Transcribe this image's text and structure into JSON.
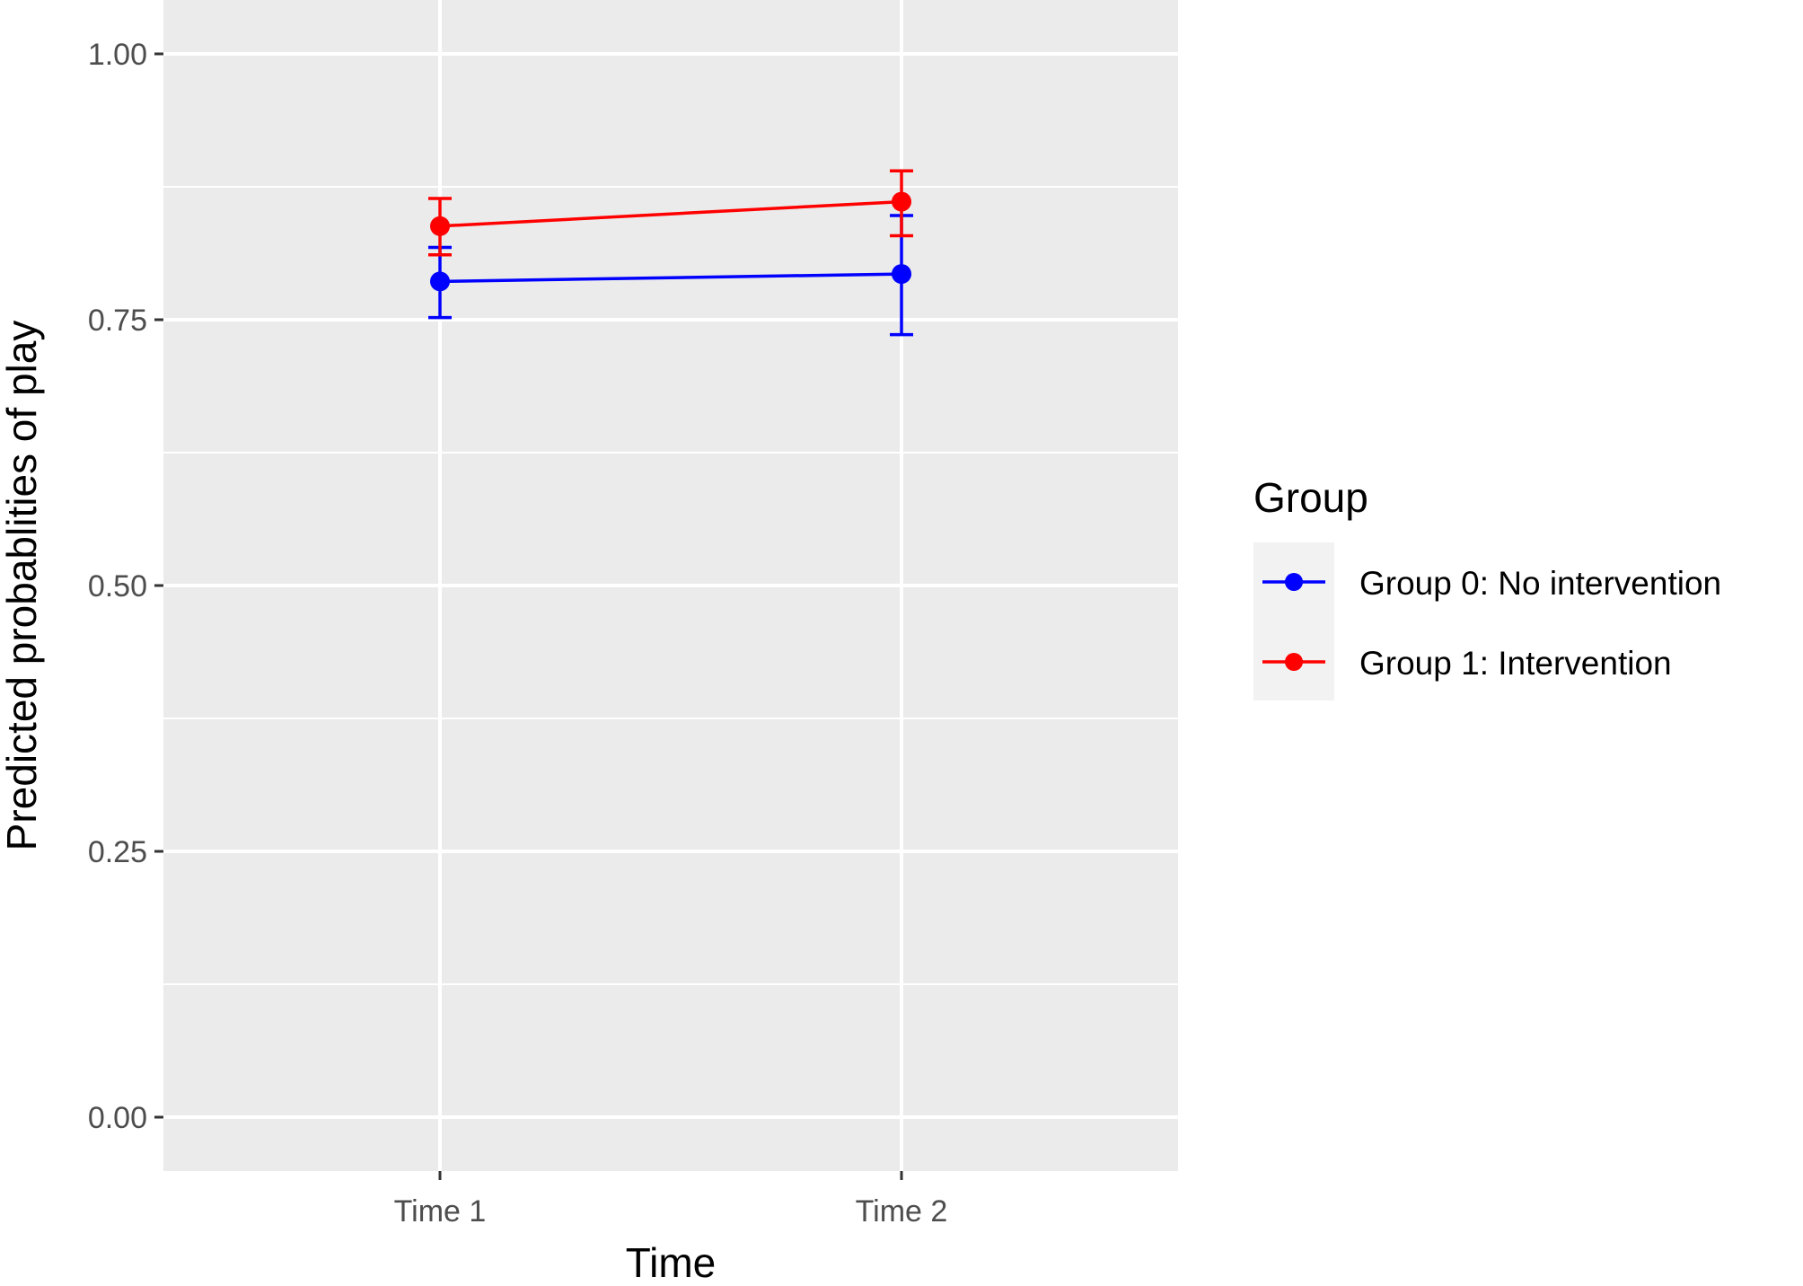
{
  "chart_data": {
    "type": "line",
    "x_categories": [
      "Time 1",
      "Time 2"
    ],
    "xlabel": "Time",
    "ylabel": "Predicted probablities of play",
    "ylim": [
      -0.05,
      1.05
    ],
    "y_ticks": [
      0.0,
      0.25,
      0.5,
      0.75,
      1.0
    ],
    "y_tick_labels": [
      "0.00",
      "0.25",
      "0.50",
      "0.75",
      "1.00"
    ],
    "grid": true,
    "legend": {
      "title": "Group",
      "placement": "right"
    },
    "series": [
      {
        "name": "Group 0: No intervention",
        "color": "#0000ff",
        "values": [
          0.786,
          0.793
        ],
        "lower": [
          0.752,
          0.736
        ],
        "upper": [
          0.818,
          0.848
        ]
      },
      {
        "name": "Group 1: Intervention",
        "color": "#ff0000",
        "values": [
          0.838,
          0.861
        ],
        "lower": [
          0.811,
          0.829
        ],
        "upper": [
          0.864,
          0.89
        ]
      }
    ]
  }
}
